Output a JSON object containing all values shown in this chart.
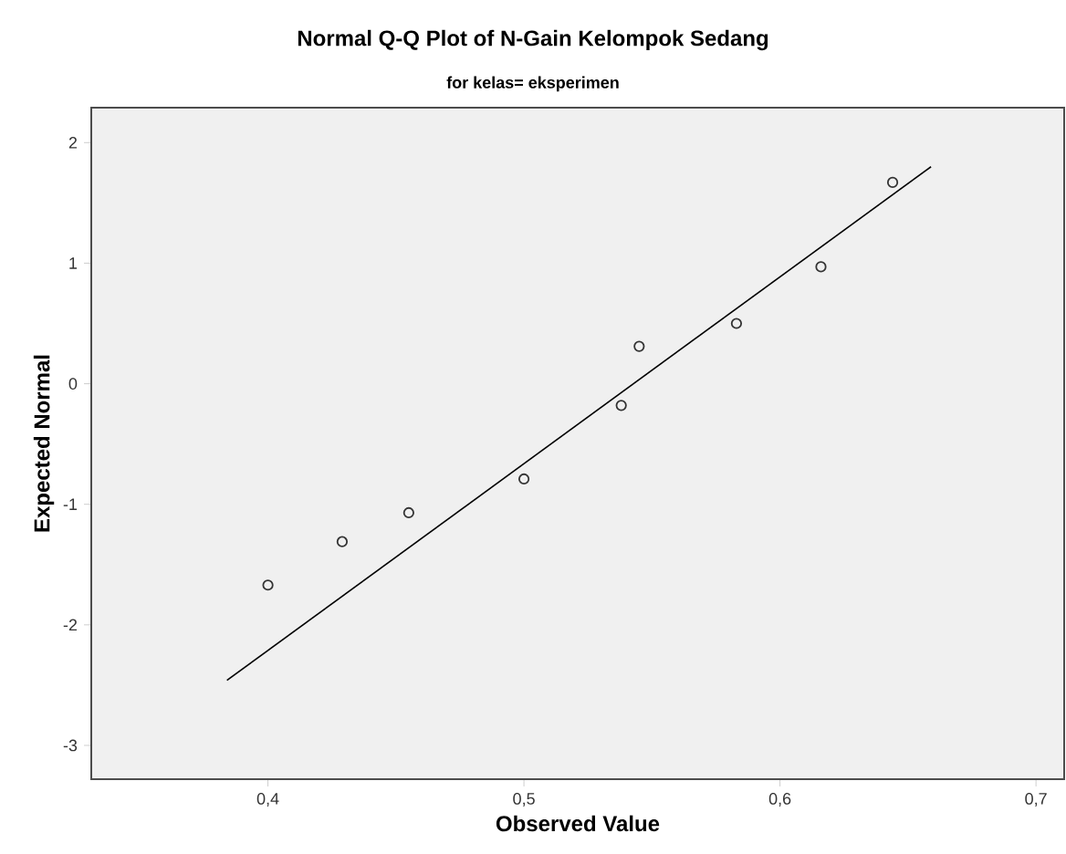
{
  "chart_data": {
    "type": "scatter",
    "title": "Normal Q-Q Plot of N-Gain Kelompok Sedang",
    "subtitle": "for kelas= eksperimen",
    "xlabel": "Observed Value",
    "ylabel": "Expected Normal",
    "xlim": [
      0.331,
      0.711
    ],
    "ylim": [
      -3.28,
      2.29
    ],
    "xticks": [
      {
        "value": 0.4,
        "label": "0,4"
      },
      {
        "value": 0.5,
        "label": "0,5"
      },
      {
        "value": 0.6,
        "label": "0,6"
      },
      {
        "value": 0.7,
        "label": "0,7"
      }
    ],
    "yticks": [
      -3,
      -2,
      -1,
      0,
      1,
      2
    ],
    "marker": "circle",
    "series": [
      {
        "color": "#333333",
        "x": [
          0.4,
          0.429,
          0.455,
          0.5,
          0.538,
          0.545,
          0.583,
          0.616,
          0.644
        ],
        "values": [
          -1.67,
          -1.31,
          -1.07,
          -0.79,
          -0.18,
          0.31,
          0.5,
          0.97,
          1.67
        ]
      },
      {
        "type": "line",
        "color": "#000000",
        "marker": "none",
        "line_style": "solid",
        "x": [
          0.384,
          0.659
        ],
        "values": [
          -2.46,
          1.8
        ]
      }
    ]
  }
}
